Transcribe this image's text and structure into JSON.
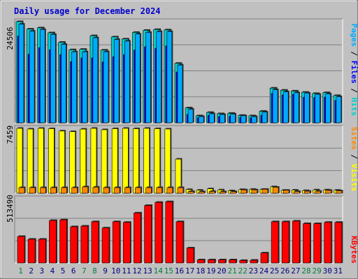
{
  "title": "Daily usage for December 2024",
  "colors": {
    "background": "#c0c0c0",
    "title": "#0000cc",
    "hits": "#00cccc",
    "files": "#0000ff",
    "pages": "#00aaff",
    "visits": "#ffff00",
    "sites": "#ff8800",
    "kbytes": "#ff0000",
    "weekend_label": "#008040",
    "weekday_label": "#000080"
  },
  "chart_data": [
    {
      "type": "bar",
      "panel": "hits-files-pages",
      "axis_max_label": "24506",
      "ylim": [
        0,
        24506
      ],
      "right_label": [
        "Pages",
        "Files",
        "Hits"
      ],
      "categories": [
        "1",
        "2",
        "3",
        "4",
        "5",
        "6",
        "7",
        "8",
        "9",
        "10",
        "11",
        "12",
        "13",
        "14",
        "15",
        "16",
        "17",
        "18",
        "19",
        "20",
        "21",
        "22",
        "23",
        "24",
        "25",
        "26",
        "27",
        "28",
        "29",
        "30",
        "31"
      ],
      "series": [
        {
          "name": "Hits",
          "values": [
            24506,
            22700,
            23000,
            21800,
            19500,
            17700,
            17800,
            21100,
            17600,
            20800,
            20300,
            21900,
            22400,
            22600,
            22500,
            14400,
            3600,
            1700,
            2500,
            2200,
            2300,
            1800,
            1700,
            2800,
            8400,
            7900,
            7700,
            7400,
            7100,
            7300,
            6600
          ]
        },
        {
          "name": "Files",
          "values": [
            21000,
            16600,
            18200,
            17700,
            16500,
            14800,
            15700,
            15700,
            14700,
            16000,
            16500,
            17600,
            18400,
            18000,
            18600,
            12300,
            2000,
            1200,
            1800,
            1500,
            1600,
            1300,
            1200,
            1800,
            7100,
            6700,
            6900,
            6200,
            6100,
            6200,
            5400
          ]
        },
        {
          "name": "Pages",
          "values": [
            23900,
            22200,
            22600,
            21400,
            19000,
            17200,
            17200,
            20600,
            17200,
            20200,
            19800,
            21500,
            21900,
            22100,
            22100,
            14000,
            3300,
            1500,
            2200,
            2000,
            2100,
            1700,
            1500,
            2600,
            8000,
            7500,
            7300,
            7200,
            6900,
            7000,
            6300
          ]
        }
      ]
    },
    {
      "type": "bar",
      "panel": "visits-sites",
      "axis_max_label": "7459",
      "ylim": [
        0,
        7459
      ],
      "right_label": [
        "Sites",
        "Visits"
      ],
      "categories": [
        "1",
        "2",
        "3",
        "4",
        "5",
        "6",
        "7",
        "8",
        "9",
        "10",
        "11",
        "12",
        "13",
        "14",
        "15",
        "16",
        "17",
        "18",
        "19",
        "20",
        "21",
        "22",
        "23",
        "24",
        "25",
        "26",
        "27",
        "28",
        "29",
        "30",
        "31"
      ],
      "series": [
        {
          "name": "Visits",
          "values": [
            7459,
            7380,
            7459,
            7420,
            7150,
            7080,
            7370,
            7459,
            7300,
            7420,
            7459,
            7420,
            7459,
            7420,
            7380,
            3920,
            420,
            340,
            500,
            380,
            280,
            420,
            450,
            440,
            740,
            330,
            350,
            300,
            380,
            380,
            340
          ]
        },
        {
          "name": "Sites",
          "values": [
            640,
            640,
            640,
            640,
            640,
            640,
            730,
            700,
            640,
            640,
            640,
            640,
            640,
            640,
            640,
            640,
            200,
            170,
            210,
            170,
            180,
            380,
            380,
            450,
            680,
            330,
            200,
            230,
            230,
            320,
            270
          ]
        }
      ]
    },
    {
      "type": "bar",
      "panel": "kbytes",
      "axis_max_label": "513490",
      "ylim": [
        0,
        513490
      ],
      "right_label": [
        "KBytes"
      ],
      "categories": [
        "1",
        "2",
        "3",
        "4",
        "5",
        "6",
        "7",
        "8",
        "9",
        "10",
        "11",
        "12",
        "13",
        "14",
        "15",
        "16",
        "17",
        "18",
        "19",
        "20",
        "21",
        "22",
        "23",
        "24",
        "25",
        "26",
        "27",
        "28",
        "29",
        "30",
        "31"
      ],
      "weekend_days": [
        "1",
        "7",
        "8",
        "14",
        "15",
        "21",
        "22",
        "28",
        "29"
      ],
      "series": [
        {
          "name": "KBytes",
          "values": [
            212000,
            190000,
            190000,
            340000,
            345000,
            290000,
            295000,
            330000,
            280000,
            330000,
            325000,
            400000,
            460000,
            485000,
            490000,
            330000,
            120000,
            25000,
            25000,
            25000,
            25000,
            20000,
            22000,
            80000,
            330000,
            330000,
            335000,
            315000,
            315000,
            325000,
            325000
          ]
        }
      ]
    }
  ]
}
